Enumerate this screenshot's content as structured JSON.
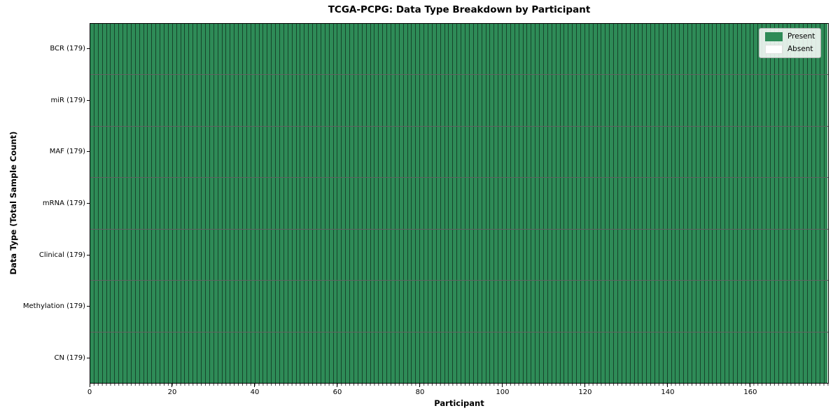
{
  "chart_data": {
    "type": "heatmap",
    "title": "TCGA-PCPG: Data Type Breakdown by Participant",
    "xlabel": "Participant",
    "ylabel": "Data Type (Total Sample Count)",
    "n_participants": 179,
    "xlim": [
      0,
      179
    ],
    "x_ticks": [
      0,
      20,
      40,
      60,
      80,
      100,
      120,
      140,
      160
    ],
    "rows": [
      {
        "label": "BCR",
        "tick_label": "BCR (179)",
        "total_samples": 179,
        "present": 179,
        "absent": 0
      },
      {
        "label": "miR",
        "tick_label": "miR (179)",
        "total_samples": 179,
        "present": 179,
        "absent": 0
      },
      {
        "label": "MAF",
        "tick_label": "MAF (179)",
        "total_samples": 179,
        "present": 179,
        "absent": 0
      },
      {
        "label": "mRNA",
        "tick_label": "mRNA (179)",
        "total_samples": 179,
        "present": 179,
        "absent": 0
      },
      {
        "label": "Clinical",
        "tick_label": "Clinical (179)",
        "total_samples": 179,
        "present": 179,
        "absent": 0
      },
      {
        "label": "Methylation",
        "tick_label": "Methylation (179)",
        "total_samples": 179,
        "present": 179,
        "absent": 0
      },
      {
        "label": "CN",
        "tick_label": "CN (179)",
        "total_samples": 179,
        "present": 179,
        "absent": 0
      }
    ],
    "legend": [
      {
        "label": "Present",
        "color": "#2e8b57"
      },
      {
        "label": "Absent",
        "color": "#ffffff"
      }
    ],
    "colors": {
      "present": "#2e8b57",
      "absent": "#ffffff",
      "cell_edge": "rgba(0,0,0,0.5)",
      "row_edge": "rgba(0,0,0,0.62)",
      "spine": "#000000",
      "legend_border": "#b5b5b5"
    },
    "legend_position": "upper right",
    "grid": "cell-edges"
  }
}
